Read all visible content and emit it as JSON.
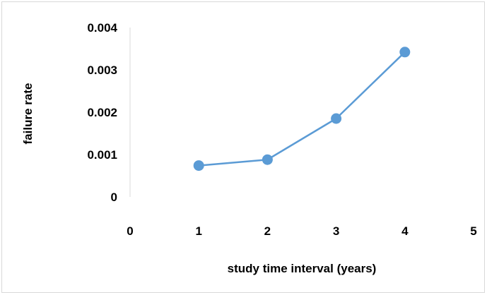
{
  "chart_data": {
    "type": "scatter",
    "title": "",
    "xlabel": "study time interval (years)",
    "ylabel": "failure rate",
    "xlim": [
      0,
      5
    ],
    "ylim": [
      0,
      0.004
    ],
    "x_ticks": [
      "0",
      "1",
      "2",
      "3",
      "4",
      "5"
    ],
    "y_ticks": [
      "0",
      "0.001",
      "0.002",
      "0.003",
      "0.004"
    ],
    "grid": false,
    "legend": "none",
    "series": [
      {
        "color": "#5b9bd5",
        "marker": "circle",
        "line": "straight",
        "x": [
          1,
          2,
          3,
          4
        ],
        "y": [
          0.00074,
          0.00088,
          0.00185,
          0.00342
        ]
      }
    ]
  }
}
